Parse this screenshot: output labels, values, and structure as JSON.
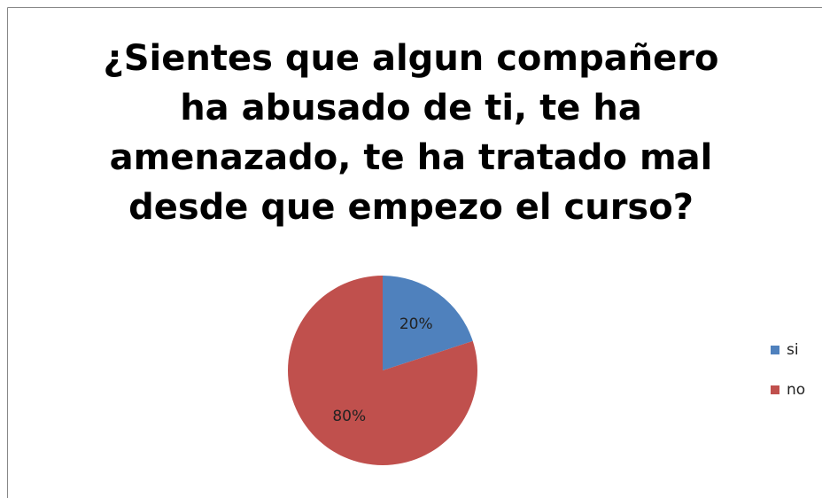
{
  "chart_data": {
    "type": "pie",
    "title": "¿Sientes que algun compañero ha abusado de ti, te ha amenazado, te ha tratado mal desde que empezo el curso?",
    "categories": [
      "si",
      "no"
    ],
    "values": [
      20,
      80
    ],
    "value_labels": [
      "20%",
      "80%"
    ],
    "colors": [
      "#4f81bd",
      "#c0504d"
    ],
    "legend": "right"
  }
}
